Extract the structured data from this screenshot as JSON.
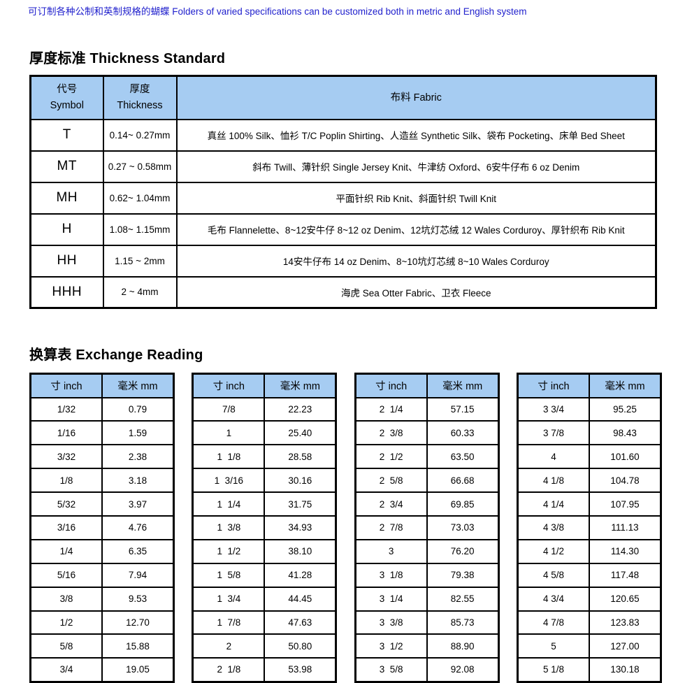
{
  "colors": {
    "header_blue": "#a6ccf2",
    "note_blue": "#2121cd",
    "border_black": "#000000"
  },
  "top_note": "可订制各种公制和英制规格的蝴蝶 Folders of varied specifications can be customized both in metric and English system",
  "thickness_section": {
    "title": "厚度标准 Thickness Standard",
    "table": {
      "headers": {
        "symbol": "代号\nSymbol",
        "thickness": "厚度\nThickness",
        "fabric": "布料 Fabric"
      },
      "rows": [
        {
          "symbol": "T",
          "thickness": "0.14~ 0.27mm",
          "fabric": "真丝 100% Silk、恤衫 T/C Poplin Shirting、人造丝 Synthetic Silk、袋布 Pocketing、床单 Bed Sheet"
        },
        {
          "symbol": "MT",
          "thickness": "0.27 ~ 0.58mm",
          "fabric": "斜布 Twill、薄针织 Single Jersey Knit、牛津纺 Oxford、6安牛仔布 6 oz Denim"
        },
        {
          "symbol": "MH",
          "thickness": "0.62~ 1.04mm",
          "fabric": "平面针织 Rib Knit、斜面针织 Twill Knit"
        },
        {
          "symbol": "H",
          "thickness": "1.08~ 1.15mm",
          "fabric": "毛布 Flannelette、8~12安牛仔 8~12 oz Denim、12坑灯芯绒 12 Wales Corduroy、厚针织布 Rib Knit"
        },
        {
          "symbol": "HH",
          "thickness": "1.15 ~ 2mm",
          "fabric": "14安牛仔布 14 oz Denim、8~10坑灯芯绒 8~10 Wales Corduroy"
        },
        {
          "symbol": "HHH",
          "thickness": "2 ~ 4mm",
          "fabric": "海虎 Sea Otter Fabric、卫衣 Fleece"
        }
      ]
    }
  },
  "exchange_section": {
    "title": "换算表 Exchange Reading",
    "col_inch": "寸 inch",
    "col_mm": "毫米 mm",
    "tables": [
      {
        "rows": [
          {
            "inch": "1/32",
            "mm": "0.79"
          },
          {
            "inch": "1/16",
            "mm": "1.59"
          },
          {
            "inch": "3/32",
            "mm": "2.38"
          },
          {
            "inch": "1/8",
            "mm": "3.18"
          },
          {
            "inch": "5/32",
            "mm": "3.97"
          },
          {
            "inch": "3/16",
            "mm": "4.76"
          },
          {
            "inch": "1/4",
            "mm": "6.35"
          },
          {
            "inch": "5/16",
            "mm": "7.94"
          },
          {
            "inch": "3/8",
            "mm": "9.53"
          },
          {
            "inch": "1/2",
            "mm": "12.70"
          },
          {
            "inch": "5/8",
            "mm": "15.88"
          },
          {
            "inch": "3/4",
            "mm": "19.05"
          }
        ]
      },
      {
        "rows": [
          {
            "inch": "7/8",
            "mm": "22.23"
          },
          {
            "inch": "1",
            "mm": "25.40"
          },
          {
            "inch": "1  1/8",
            "mm": "28.58"
          },
          {
            "inch": "1  3/16",
            "mm": "30.16"
          },
          {
            "inch": "1  1/4",
            "mm": "31.75"
          },
          {
            "inch": "1  3/8",
            "mm": "34.93"
          },
          {
            "inch": "1  1/2",
            "mm": "38.10"
          },
          {
            "inch": "1  5/8",
            "mm": "41.28"
          },
          {
            "inch": "1  3/4",
            "mm": "44.45"
          },
          {
            "inch": "1  7/8",
            "mm": "47.63"
          },
          {
            "inch": "2",
            "mm": "50.80"
          },
          {
            "inch": "2  1/8",
            "mm": "53.98"
          }
        ]
      },
      {
        "rows": [
          {
            "inch": "2  1/4",
            "mm": "57.15"
          },
          {
            "inch": "2  3/8",
            "mm": "60.33"
          },
          {
            "inch": "2  1/2",
            "mm": "63.50"
          },
          {
            "inch": "2  5/8",
            "mm": "66.68"
          },
          {
            "inch": "2  3/4",
            "mm": "69.85"
          },
          {
            "inch": "2  7/8",
            "mm": "73.03"
          },
          {
            "inch": "3",
            "mm": "76.20"
          },
          {
            "inch": "3  1/8",
            "mm": "79.38"
          },
          {
            "inch": "3  1/4",
            "mm": "82.55"
          },
          {
            "inch": "3  3/8",
            "mm": "85.73"
          },
          {
            "inch": "3  1/2",
            "mm": "88.90"
          },
          {
            "inch": "3  5/8",
            "mm": "92.08"
          }
        ]
      },
      {
        "rows": [
          {
            "inch": "3 3/4",
            "mm": "95.25"
          },
          {
            "inch": "3 7/8",
            "mm": "98.43"
          },
          {
            "inch": "4",
            "mm": "101.60"
          },
          {
            "inch": "4 1/8",
            "mm": "104.78"
          },
          {
            "inch": "4 1/4",
            "mm": "107.95"
          },
          {
            "inch": "4 3/8",
            "mm": "111.13"
          },
          {
            "inch": "4 1/2",
            "mm": "114.30"
          },
          {
            "inch": "4 5/8",
            "mm": "117.48"
          },
          {
            "inch": "4 3/4",
            "mm": "120.65"
          },
          {
            "inch": "4 7/8",
            "mm": "123.83"
          },
          {
            "inch": "5",
            "mm": "127.00"
          },
          {
            "inch": "5 1/8",
            "mm": "130.18"
          }
        ]
      }
    ]
  }
}
